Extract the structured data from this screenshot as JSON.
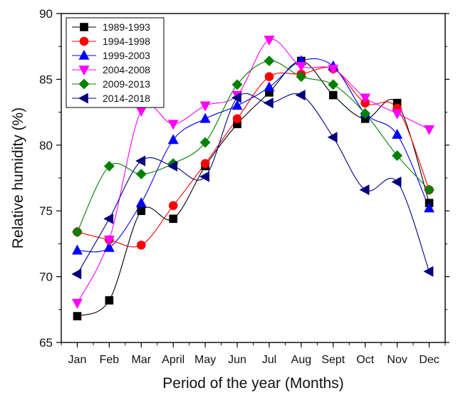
{
  "chart_data": {
    "type": "line",
    "title": "",
    "xlabel": "Period of the year (Months)",
    "ylabel": "Relative humidity (%)",
    "categories": [
      "Jan",
      "Feb",
      "Mar",
      "April",
      "May",
      "Jun",
      "Jul",
      "Aug",
      "Sept",
      "Oct",
      "Nov",
      "Dec"
    ],
    "ylim": [
      65,
      90
    ],
    "yticks": [
      65,
      70,
      75,
      80,
      85,
      90
    ],
    "grid": false,
    "legend_position": "top-left",
    "series": [
      {
        "name": "1989-1993",
        "color": "#000000",
        "marker": "square",
        "values": [
          67.0,
          68.2,
          75.0,
          74.4,
          78.4,
          81.6,
          84.0,
          86.4,
          83.8,
          82.0,
          83.2,
          75.6
        ]
      },
      {
        "name": "1994-1998",
        "color": "#ff0000",
        "marker": "circle",
        "values": [
          73.4,
          72.8,
          72.4,
          75.4,
          78.6,
          82.0,
          85.2,
          85.4,
          85.8,
          83.2,
          82.8,
          76.6
        ]
      },
      {
        "name": "1999-2003",
        "color": "#0000ff",
        "marker": "triangle-up",
        "values": [
          72.0,
          72.2,
          75.6,
          80.4,
          82.0,
          83.0,
          84.4,
          86.4,
          86.0,
          82.4,
          80.8,
          75.2
        ]
      },
      {
        "name": "2004-2008",
        "color": "#ff00ff",
        "marker": "triangle-down",
        "values": [
          68.0,
          72.8,
          82.6,
          81.6,
          83.0,
          83.8,
          88.0,
          86.0,
          85.8,
          83.6,
          82.4,
          81.2
        ]
      },
      {
        "name": "2009-2013",
        "color": "#008000",
        "marker": "diamond",
        "values": [
          73.4,
          78.4,
          77.8,
          78.6,
          80.2,
          84.6,
          86.4,
          85.2,
          84.6,
          82.4,
          79.2,
          76.6
        ]
      },
      {
        "name": "2014-2018",
        "color": "#000080",
        "marker": "triangle-left",
        "values": [
          70.2,
          74.4,
          78.8,
          78.4,
          77.6,
          83.6,
          83.2,
          83.8,
          80.6,
          76.6,
          77.2,
          70.4
        ]
      }
    ]
  }
}
